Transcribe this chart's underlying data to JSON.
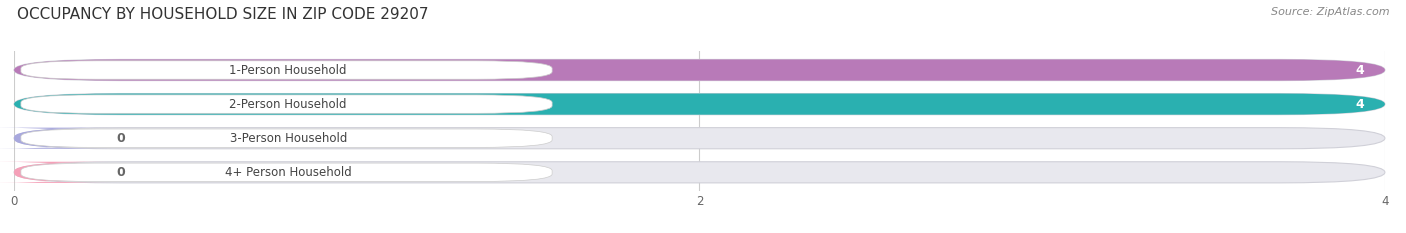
{
  "title": "OCCUPANCY BY HOUSEHOLD SIZE IN ZIP CODE 29207",
  "source": "Source: ZipAtlas.com",
  "categories": [
    "1-Person Household",
    "2-Person Household",
    "3-Person Household",
    "4+ Person Household"
  ],
  "values": [
    4,
    4,
    0,
    0
  ],
  "bar_colors": [
    "#b87ab8",
    "#2ab0b0",
    "#a8a8dd",
    "#f5a0b8"
  ],
  "xlim_max": 4.0,
  "xticks": [
    0,
    2,
    4
  ],
  "background_color": "#ffffff",
  "bar_bg_color": "#e8e8ee",
  "title_fontsize": 11,
  "source_fontsize": 8,
  "label_fontsize": 8.5,
  "value_label_fontsize": 9
}
